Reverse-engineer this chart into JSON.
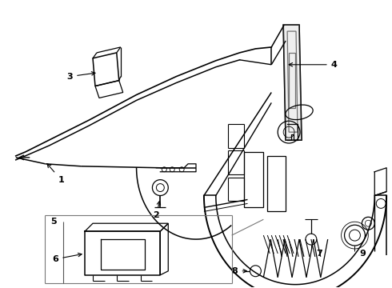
{
  "bg_color": "#ffffff",
  "line_color": "#000000",
  "lw": 0.9,
  "figsize": [
    4.9,
    3.6
  ],
  "dpi": 100
}
